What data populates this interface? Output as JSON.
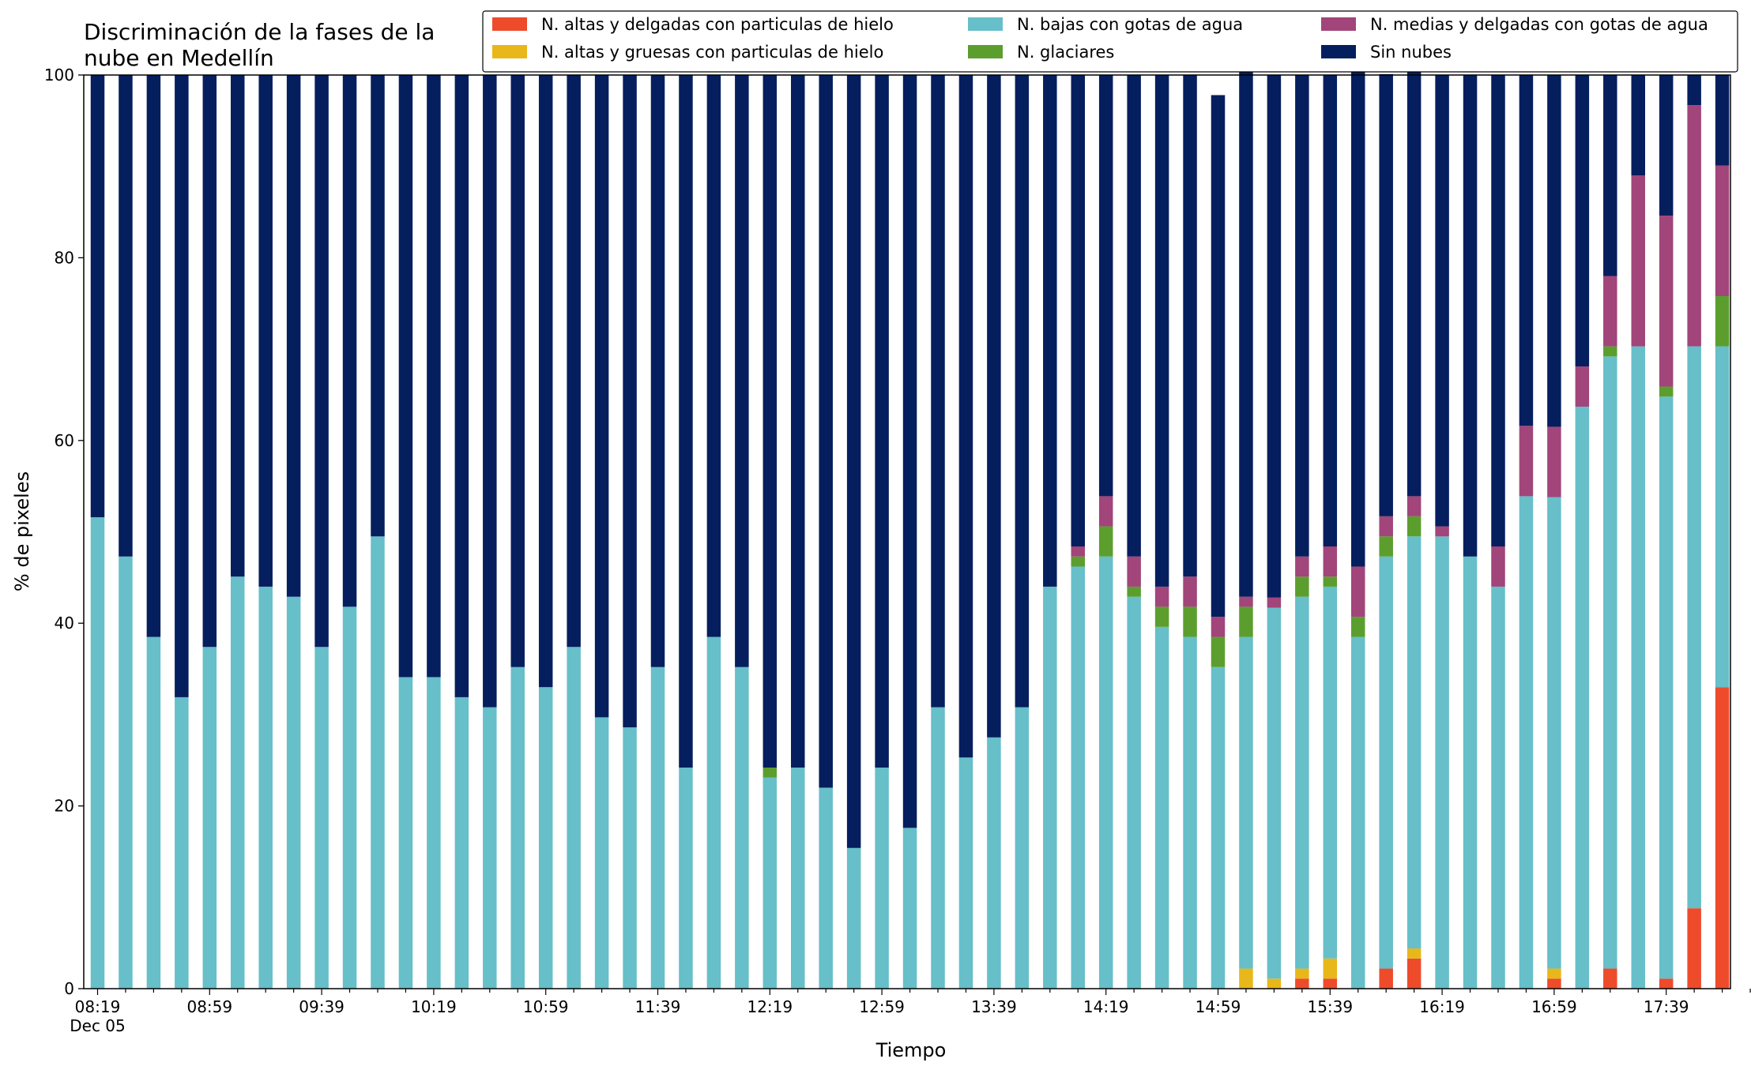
{
  "chart_data": {
    "type": "bar",
    "stacked": true,
    "title_lines": [
      "Discriminación de la fases de la",
      "nube en Medellín"
    ],
    "xlabel": "Tiempo",
    "ylabel": "% de pixeles",
    "ylim": [
      0,
      100
    ],
    "yticks": [
      0,
      20,
      40,
      60,
      80,
      100
    ],
    "x_tick_labels": [
      "08:19",
      "08:59",
      "09:39",
      "10:19",
      "10:59",
      "11:39",
      "12:19",
      "12:59",
      "13:39",
      "14:19",
      "14:59",
      "15:39",
      "16:19",
      "16:59",
      "17:39"
    ],
    "x_date_label": "Dec 05",
    "legend_placement": "top-right",
    "grid": false,
    "series": [
      {
        "name": "N. altas y delgadas con particulas de hielo",
        "color": "#ee4b2b",
        "values": [
          0,
          0,
          0,
          0,
          0,
          0,
          0,
          0,
          0,
          0,
          0,
          0,
          0,
          0,
          0,
          0,
          0,
          0,
          0,
          0,
          0,
          0,
          0,
          0,
          0,
          0,
          0,
          0,
          0,
          0,
          0,
          0,
          0,
          0,
          0,
          0,
          0,
          0,
          0,
          0,
          0,
          0,
          0,
          1.1,
          1.1,
          0,
          2.2,
          3.3,
          0,
          0,
          0,
          0,
          1.1,
          0,
          2.2,
          0,
          1.1,
          8.8,
          33.0
        ]
      },
      {
        "name": "N. altas y gruesas con particulas de hielo",
        "color": "#e8b71a",
        "values": [
          0,
          0,
          0,
          0,
          0,
          0,
          0,
          0,
          0,
          0,
          0,
          0,
          0,
          0,
          0,
          0,
          0,
          0,
          0,
          0,
          0,
          0,
          0,
          0,
          0,
          0,
          0,
          0,
          0,
          0,
          0,
          0,
          0,
          0,
          0,
          0,
          0,
          0,
          0,
          0,
          0,
          2.2,
          1.1,
          1.1,
          2.2,
          0,
          0,
          1.1,
          0,
          0,
          0,
          0,
          1.1,
          0,
          0,
          0,
          0,
          0,
          0
        ]
      },
      {
        "name": "N. bajas con gotas de agua",
        "color": "#66bfc9",
        "values": [
          51.6,
          47.3,
          38.5,
          31.9,
          37.4,
          45.1,
          44.0,
          42.9,
          37.4,
          41.8,
          49.5,
          34.1,
          34.1,
          31.9,
          30.8,
          35.2,
          33.0,
          37.4,
          29.7,
          28.6,
          35.2,
          24.2,
          38.5,
          35.2,
          23.1,
          24.2,
          22.0,
          15.4,
          24.2,
          17.6,
          30.8,
          25.3,
          27.5,
          30.8,
          44.0,
          46.2,
          47.3,
          42.9,
          39.6,
          38.5,
          35.2,
          36.3,
          40.6,
          40.7,
          40.7,
          38.5,
          45.1,
          45.1,
          49.5,
          47.3,
          44.0,
          53.9,
          51.6,
          63.7,
          67.0,
          70.3,
          63.7,
          61.5,
          37.3
        ]
      },
      {
        "name": "N. glaciares",
        "color": "#5c9e2e",
        "values": [
          0,
          0,
          0,
          0,
          0,
          0,
          0,
          0,
          0,
          0,
          0,
          0,
          0,
          0,
          0,
          0,
          0,
          0,
          0,
          0,
          0,
          0,
          0,
          0,
          1.1,
          0,
          0,
          0,
          0,
          0,
          0,
          0,
          0,
          0,
          0,
          1.1,
          3.3,
          1.1,
          2.2,
          3.3,
          3.3,
          3.3,
          0,
          2.2,
          1.1,
          2.2,
          2.2,
          2.2,
          0,
          0,
          0,
          0,
          0,
          0,
          1.1,
          0,
          1.1,
          0,
          5.5
        ]
      },
      {
        "name": "N. medias y delgadas con gotas de agua",
        "color": "#a1457a",
        "values": [
          0,
          0,
          0,
          0,
          0,
          0,
          0,
          0,
          0,
          0,
          0,
          0,
          0,
          0,
          0,
          0,
          0,
          0,
          0,
          0,
          0,
          0,
          0,
          0,
          0,
          0,
          0,
          0,
          0,
          0,
          0,
          0,
          0,
          0,
          0,
          1.1,
          3.3,
          3.3,
          2.2,
          3.3,
          2.2,
          1.1,
          1.1,
          2.2,
          3.3,
          5.5,
          2.2,
          2.2,
          1.1,
          0,
          4.4,
          7.7,
          7.7,
          4.4,
          7.7,
          18.7,
          18.7,
          26.4,
          14.3
        ]
      },
      {
        "name": "Sin nubes",
        "color": "#051e5e",
        "values": [
          48.4,
          52.7,
          61.5,
          68.1,
          62.6,
          54.9,
          56.0,
          57.1,
          62.6,
          58.2,
          50.5,
          65.9,
          65.9,
          68.1,
          69.2,
          64.8,
          67.0,
          62.6,
          70.3,
          71.4,
          64.8,
          75.8,
          61.5,
          64.8,
          75.8,
          75.8,
          78.0,
          84.6,
          75.8,
          82.4,
          69.2,
          74.7,
          72.5,
          69.2,
          56.0,
          51.6,
          46.1,
          52.7,
          56.0,
          54.9,
          57.1,
          58.2,
          57.2,
          52.7,
          51.6,
          57.1,
          48.4,
          50.5,
          49.4,
          52.7,
          51.6,
          38.4,
          38.5,
          31.9,
          22.0,
          11.0,
          15.4,
          3.3,
          9.9
        ]
      }
    ]
  }
}
